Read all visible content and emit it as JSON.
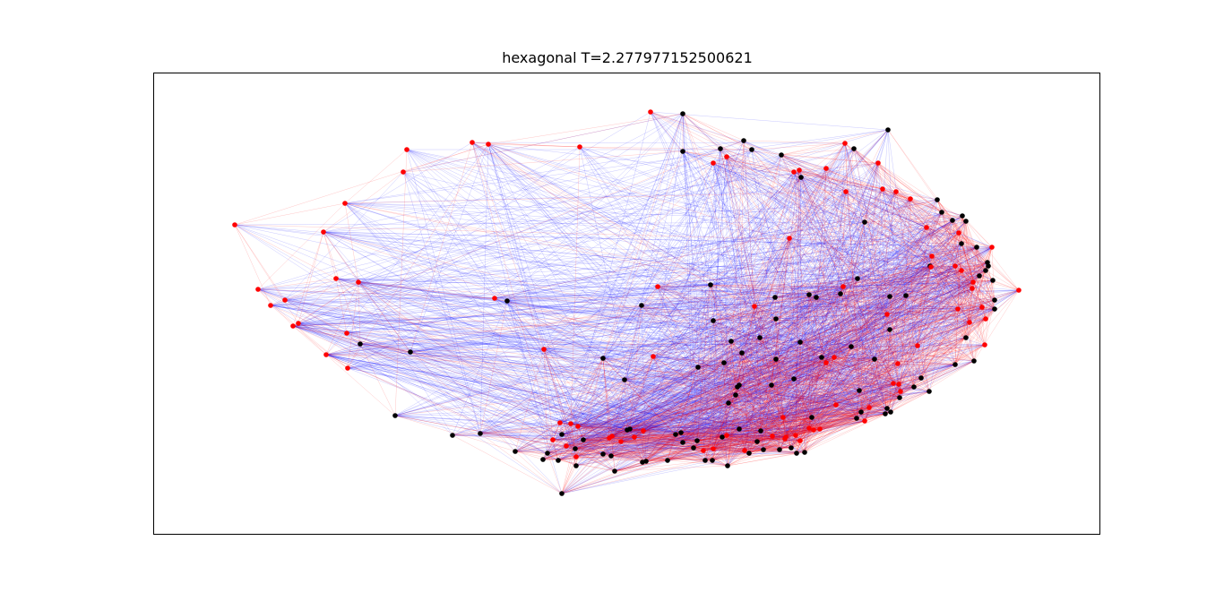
{
  "chart_data": {
    "type": "scatter",
    "title": "hexagonal T=2.277977152500621",
    "xlabel": "",
    "ylabel": "",
    "grid": false,
    "ticks": false,
    "colors": {
      "node_red": "#ff0000",
      "node_black": "#000000",
      "edge_red": "#ff0000",
      "edge_blue": "#0000ff",
      "frame": "#000000",
      "background": "#ffffff"
    },
    "red_nodes": [
      [
        262,
        251
      ],
      [
        288,
        323
      ],
      [
        302,
        341
      ],
      [
        318,
        335
      ],
      [
        327,
        364
      ],
      [
        333,
        361
      ],
      [
        364,
        396
      ],
      [
        387,
        372
      ],
      [
        388,
        411
      ],
      [
        361,
        259
      ],
      [
        375,
        311
      ],
      [
        400,
        315
      ],
      [
        385,
        227
      ],
      [
        450,
        192
      ],
      [
        454,
        167
      ],
      [
        527,
        159
      ],
      [
        545,
        161
      ],
      [
        647,
        164
      ],
      [
        726,
        125
      ],
      [
        552,
        333
      ],
      [
        607,
        390
      ],
      [
        729,
        398
      ],
      [
        734,
        320
      ],
      [
        796,
        182
      ],
      [
        811,
        175
      ],
      [
        881,
        266
      ],
      [
        886,
        192
      ],
      [
        892,
        190
      ],
      [
        922,
        188
      ],
      [
        943,
        160
      ],
      [
        944,
        214
      ],
      [
        980,
        182
      ],
      [
        985,
        211
      ],
      [
        1000,
        214
      ],
      [
        1016,
        222
      ],
      [
        1034,
        254
      ],
      [
        1070,
        260
      ],
      [
        1107,
        276
      ],
      [
        1066,
        297
      ],
      [
        1073,
        302
      ],
      [
        1086,
        315
      ],
      [
        1085,
        322
      ],
      [
        1137,
        324
      ],
      [
        1040,
        286
      ],
      [
        1039,
        298
      ],
      [
        1069,
        345
      ],
      [
        1082,
        360
      ],
      [
        1096,
        343
      ],
      [
        1100,
        356
      ],
      [
        1099,
        385
      ],
      [
        1024,
        386
      ],
      [
        1002,
        406
      ],
      [
        997,
        428
      ],
      [
        1003,
        429
      ],
      [
        1005,
        437
      ],
      [
        990,
        351
      ],
      [
        941,
        320
      ],
      [
        842,
        342
      ],
      [
        922,
        405
      ],
      [
        931,
        399
      ],
      [
        933,
        452
      ],
      [
        965,
        470
      ],
      [
        970,
        455
      ],
      [
        874,
        466
      ],
      [
        877,
        488
      ],
      [
        888,
        486
      ],
      [
        893,
        492
      ],
      [
        876,
        490
      ],
      [
        903,
        478
      ],
      [
        908,
        480
      ],
      [
        915,
        479
      ],
      [
        625,
        472
      ],
      [
        637,
        473
      ],
      [
        645,
        476
      ],
      [
        617,
        491
      ],
      [
        643,
        510
      ],
      [
        632,
        498
      ],
      [
        680,
        489
      ],
      [
        683,
        487
      ],
      [
        693,
        493
      ],
      [
        708,
        488
      ],
      [
        718,
        481
      ],
      [
        785,
        503
      ],
      [
        796,
        501
      ],
      [
        811,
        486
      ],
      [
        831,
        503
      ],
      [
        862,
        487
      ]
    ],
    "black_nodes": [
      [
        762,
        127
      ],
      [
        762,
        169
      ],
      [
        804,
        166
      ],
      [
        830,
        157
      ],
      [
        839,
        167
      ],
      [
        872,
        173
      ],
      [
        894,
        198
      ],
      [
        953,
        166
      ],
      [
        991,
        145
      ],
      [
        965,
        248
      ],
      [
        1046,
        223
      ],
      [
        1051,
        237
      ],
      [
        1063,
        246
      ],
      [
        1074,
        241
      ],
      [
        1078,
        247
      ],
      [
        1073,
        272
      ],
      [
        1090,
        276
      ],
      [
        1102,
        293
      ],
      [
        1103,
        297
      ],
      [
        1100,
        302
      ],
      [
        1093,
        308
      ],
      [
        1108,
        313
      ],
      [
        1110,
        335
      ],
      [
        1110,
        345
      ],
      [
        1038,
        297
      ],
      [
        957,
        311
      ],
      [
        938,
        328
      ],
      [
        993,
        331
      ],
      [
        1011,
        330
      ],
      [
        993,
        368
      ],
      [
        1078,
        377
      ],
      [
        1087,
        403
      ],
      [
        1066,
        407
      ],
      [
        1037,
        437
      ],
      [
        1028,
        422
      ],
      [
        1020,
        432
      ],
      [
        959,
        436
      ],
      [
        976,
        401
      ],
      [
        950,
        387
      ],
      [
        917,
        399
      ],
      [
        956,
        467
      ],
      [
        961,
        460
      ],
      [
        990,
        456
      ],
      [
        994,
        460
      ],
      [
        988,
        462
      ],
      [
        1004,
        444
      ],
      [
        911,
        332
      ],
      [
        903,
        329
      ],
      [
        865,
        332
      ],
      [
        866,
        356
      ],
      [
        848,
        377
      ],
      [
        893,
        382
      ],
      [
        866,
        401
      ],
      [
        861,
        430
      ],
      [
        886,
        423
      ],
      [
        816,
        381
      ],
      [
        828,
        394
      ],
      [
        808,
        405
      ],
      [
        779,
        410
      ],
      [
        796,
        358
      ],
      [
        793,
        318
      ],
      [
        716,
        341
      ],
      [
        697,
        424
      ],
      [
        673,
        400
      ],
      [
        566,
        336
      ],
      [
        458,
        393
      ],
      [
        402,
        384
      ],
      [
        441,
        464
      ],
      [
        505,
        486
      ],
      [
        536,
        484
      ],
      [
        575,
        504
      ],
      [
        606,
        513
      ],
      [
        611,
        506
      ],
      [
        627,
        485
      ],
      [
        623,
        514
      ],
      [
        643,
        520
      ],
      [
        642,
        501
      ],
      [
        651,
        491
      ],
      [
        673,
        507
      ],
      [
        682,
        509
      ],
      [
        686,
        526
      ],
      [
        627,
        551
      ],
      [
        700,
        480
      ],
      [
        703,
        479
      ],
      [
        717,
        516
      ],
      [
        721,
        515
      ],
      [
        745,
        514
      ],
      [
        754,
        485
      ],
      [
        760,
        483
      ],
      [
        762,
        494
      ],
      [
        774,
        500
      ],
      [
        778,
        492
      ],
      [
        787,
        514
      ],
      [
        795,
        514
      ],
      [
        806,
        488
      ],
      [
        812,
        520
      ],
      [
        821,
        441
      ],
      [
        823,
        432
      ],
      [
        813,
        450
      ],
      [
        825,
        479
      ],
      [
        836,
        506
      ],
      [
        845,
        493
      ],
      [
        849,
        481
      ],
      [
        852,
        502
      ],
      [
        870,
        502
      ],
      [
        883,
        500
      ],
      [
        889,
        506
      ],
      [
        898,
        505
      ],
      [
        906,
        466
      ],
      [
        825,
        430
      ]
    ]
  }
}
